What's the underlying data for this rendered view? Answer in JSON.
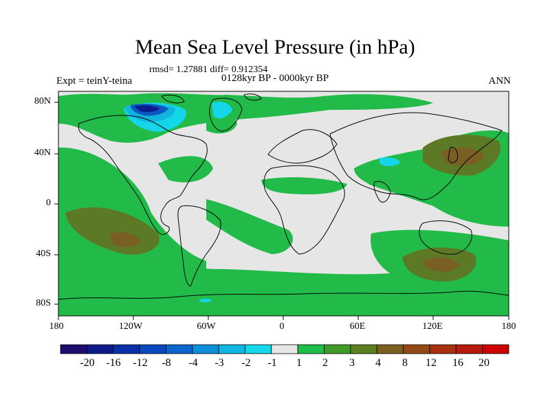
{
  "title": "Mean Sea Level Pressure (in hPa)",
  "stats": "rmsd= 1.27881 diff= 0.912354",
  "period": "0128kyr BP - 0000kyr BP",
  "experiment": "Expt = teinY-teina",
  "season": "ANN",
  "map": {
    "lat_labels": [
      "80N",
      "40N",
      "0",
      "40S",
      "80S"
    ],
    "lon_labels": [
      "180",
      "120W",
      "60W",
      "0",
      "60E",
      "120E",
      "180"
    ]
  },
  "colorbar": {
    "labels": [
      "-20",
      "-16",
      "-12",
      "-8",
      "-4",
      "-3",
      "-2",
      "-1",
      "1",
      "2",
      "3",
      "4",
      "8",
      "12",
      "16",
      "20"
    ],
    "colors": [
      "#1e0c6e",
      "#0d1a8c",
      "#0b2fa8",
      "#0a48c0",
      "#0a66cc",
      "#0b8ed8",
      "#10b6e2",
      "#14d8e8",
      "#e6e6e6",
      "#1fbe48",
      "#3f9a2a",
      "#5e7e22",
      "#7a6020",
      "#944a16",
      "#a8300f",
      "#b81a0b",
      "#cc0000"
    ]
  },
  "palette": {
    "neutral": "#e6e6e6",
    "green": "#22bb4a",
    "olive": "#5c7a26",
    "brown": "#7a5f24",
    "light_blue": "#14d6e8",
    "cyan": "#10b4de",
    "blue": "#0a58c0",
    "navy": "#0d1a8c"
  }
}
